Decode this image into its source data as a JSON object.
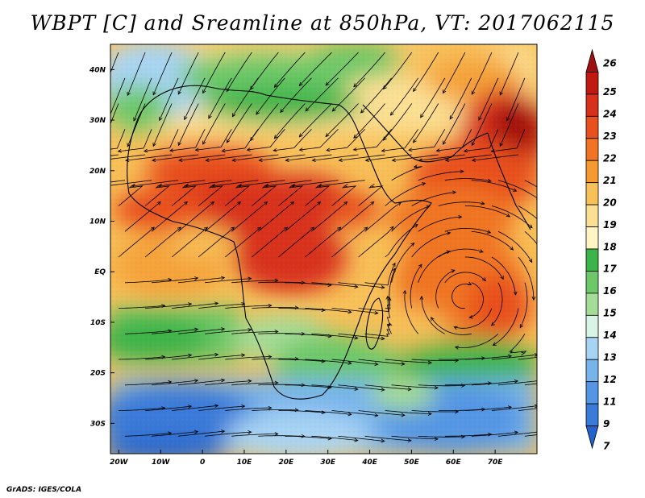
{
  "title": "WBPT [C] and Sreamline at 850hPa, VT: 2017062115",
  "credit": "GrADS: IGES/COLA",
  "map": {
    "lon_range": [
      -22,
      80
    ],
    "lat_range": [
      -36,
      45
    ],
    "lon_ticks": [
      {
        "value": -20,
        "label": "20W"
      },
      {
        "value": -10,
        "label": "10W"
      },
      {
        "value": 0,
        "label": "0"
      },
      {
        "value": 10,
        "label": "10E"
      },
      {
        "value": 20,
        "label": "20E"
      },
      {
        "value": 30,
        "label": "30E"
      },
      {
        "value": 40,
        "label": "40E"
      },
      {
        "value": 50,
        "label": "50E"
      },
      {
        "value": 60,
        "label": "60E"
      },
      {
        "value": 70,
        "label": "70E"
      }
    ],
    "lat_ticks": [
      {
        "value": 40,
        "label": "40N"
      },
      {
        "value": 30,
        "label": "30N"
      },
      {
        "value": 20,
        "label": "20N"
      },
      {
        "value": 10,
        "label": "10N"
      },
      {
        "value": 0,
        "label": "EQ"
      },
      {
        "value": -10,
        "label": "10S"
      },
      {
        "value": -20,
        "label": "20S"
      },
      {
        "value": -30,
        "label": "30S"
      }
    ]
  },
  "colorbar": {
    "labels": [
      "26",
      "25",
      "24",
      "23",
      "22",
      "21",
      "20",
      "19",
      "18",
      "17",
      "16",
      "15",
      "14",
      "13",
      "12",
      "11",
      "9",
      "7"
    ],
    "colors": [
      "#a01010",
      "#c01a10",
      "#d8301a",
      "#e8501e",
      "#f07424",
      "#f59a30",
      "#f8c058",
      "#fbe094",
      "#fff6c4",
      "#3cb44a",
      "#6cc868",
      "#a4dc98",
      "#d8f4e6",
      "#a8d4f4",
      "#78b4ec",
      "#5496e4",
      "#3a7ad8",
      "#2462cc"
    ]
  }
}
